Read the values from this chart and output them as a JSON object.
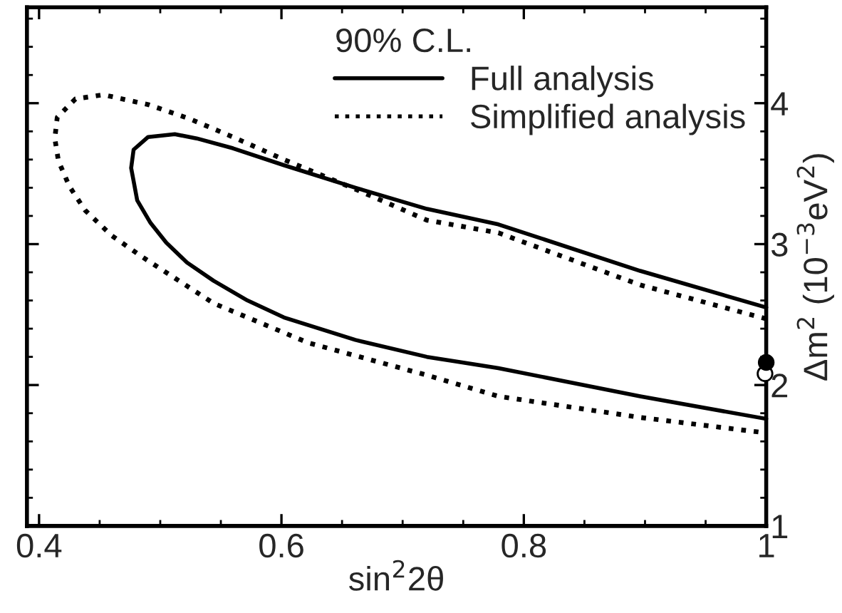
{
  "chart_data": {
    "type": "line",
    "xlabel": "sin$^{2}$2θ",
    "ylabel": "Δm$^{2}$ (10$^{−3}$eV$^{2}$)",
    "legend_title": "90% C.L.",
    "legend": "top right",
    "grid": false,
    "marker": "none",
    "xlim": [
      0.39,
      1.0
    ],
    "xticks": [
      0.4,
      0.6,
      0.8,
      1
    ],
    "ylim": [
      1,
      4.68
    ],
    "yticks": [
      1,
      2,
      3,
      4
    ],
    "series": [
      {
        "name": "Full analysis",
        "color": "#000000",
        "line_style": "solid",
        "x": [
          1.0,
          0.896,
          0.779,
          0.72,
          0.661,
          0.602,
          0.56,
          0.53,
          0.512,
          0.49,
          0.478,
          0.476,
          0.481,
          0.492,
          0.505,
          0.522,
          0.544,
          0.572,
          0.602,
          0.661,
          0.72,
          0.779,
          0.896,
          1.0
        ],
        "values": [
          2.55,
          2.81,
          3.14,
          3.25,
          3.4,
          3.56,
          3.68,
          3.75,
          3.78,
          3.76,
          3.67,
          3.54,
          3.31,
          3.15,
          3.01,
          2.87,
          2.74,
          2.6,
          2.48,
          2.32,
          2.2,
          2.12,
          1.92,
          1.76
        ]
      },
      {
        "name": "Simplified analysis",
        "color": "#000000",
        "line_style": "dotted",
        "x": [
          1.0,
          0.896,
          0.779,
          0.72,
          0.661,
          0.602,
          0.56,
          0.524,
          0.49,
          0.453,
          0.43,
          0.415,
          0.413,
          0.416,
          0.425,
          0.438,
          0.46,
          0.485,
          0.544,
          0.622,
          0.72,
          0.779,
          0.896,
          1.0
        ],
        "values": [
          2.47,
          2.71,
          3.08,
          3.17,
          3.39,
          3.6,
          3.76,
          3.89,
          3.99,
          4.06,
          4.03,
          3.9,
          3.75,
          3.59,
          3.41,
          3.24,
          3.06,
          2.91,
          2.58,
          2.3,
          2.07,
          1.92,
          1.77,
          1.66
        ]
      },
      {
        "type": "scatter",
        "marker": "circle",
        "color": "#ffffff",
        "x": [
          0.999
        ],
        "values": [
          2.08
        ]
      },
      {
        "type": "scatter",
        "marker": "circle",
        "color": "#000000",
        "x": [
          1.0
        ],
        "values": [
          2.16
        ]
      }
    ]
  }
}
